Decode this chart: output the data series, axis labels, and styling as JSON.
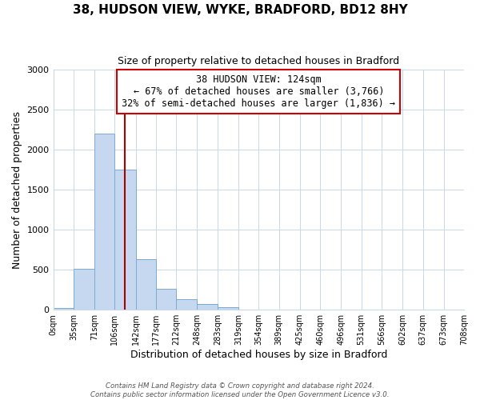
{
  "title": "38, HUDSON VIEW, WYKE, BRADFORD, BD12 8HY",
  "subtitle": "Size of property relative to detached houses in Bradford",
  "xlabel": "Distribution of detached houses by size in Bradford",
  "ylabel": "Number of detached properties",
  "bin_labels": [
    "0sqm",
    "35sqm",
    "71sqm",
    "106sqm",
    "142sqm",
    "177sqm",
    "212sqm",
    "248sqm",
    "283sqm",
    "319sqm",
    "354sqm",
    "389sqm",
    "425sqm",
    "460sqm",
    "496sqm",
    "531sqm",
    "566sqm",
    "602sqm",
    "637sqm",
    "673sqm",
    "708sqm"
  ],
  "bar_values": [
    20,
    510,
    2200,
    1750,
    635,
    265,
    130,
    75,
    30,
    5,
    0,
    0,
    0,
    0,
    0,
    0,
    0,
    0,
    0,
    0
  ],
  "bar_color": "#c5d8ef",
  "bar_edge_color": "#7aabcf",
  "property_line_x": 124,
  "property_line_color": "#aa0000",
  "annotation_line1": "38 HUDSON VIEW: 124sqm",
  "annotation_line2": "← 67% of detached houses are smaller (3,766)",
  "annotation_line3": "32% of semi-detached houses are larger (1,836) →",
  "annotation_box_color": "#ffffff",
  "annotation_box_edge_color": "#cc0000",
  "footer_line1": "Contains HM Land Registry data © Crown copyright and database right 2024.",
  "footer_line2": "Contains public sector information licensed under the Open Government Licence v3.0.",
  "ylim": [
    0,
    3000
  ],
  "xlim_min": 0,
  "xlim_max": 708,
  "background_color": "#ffffff",
  "grid_color": "#c8d8e8"
}
